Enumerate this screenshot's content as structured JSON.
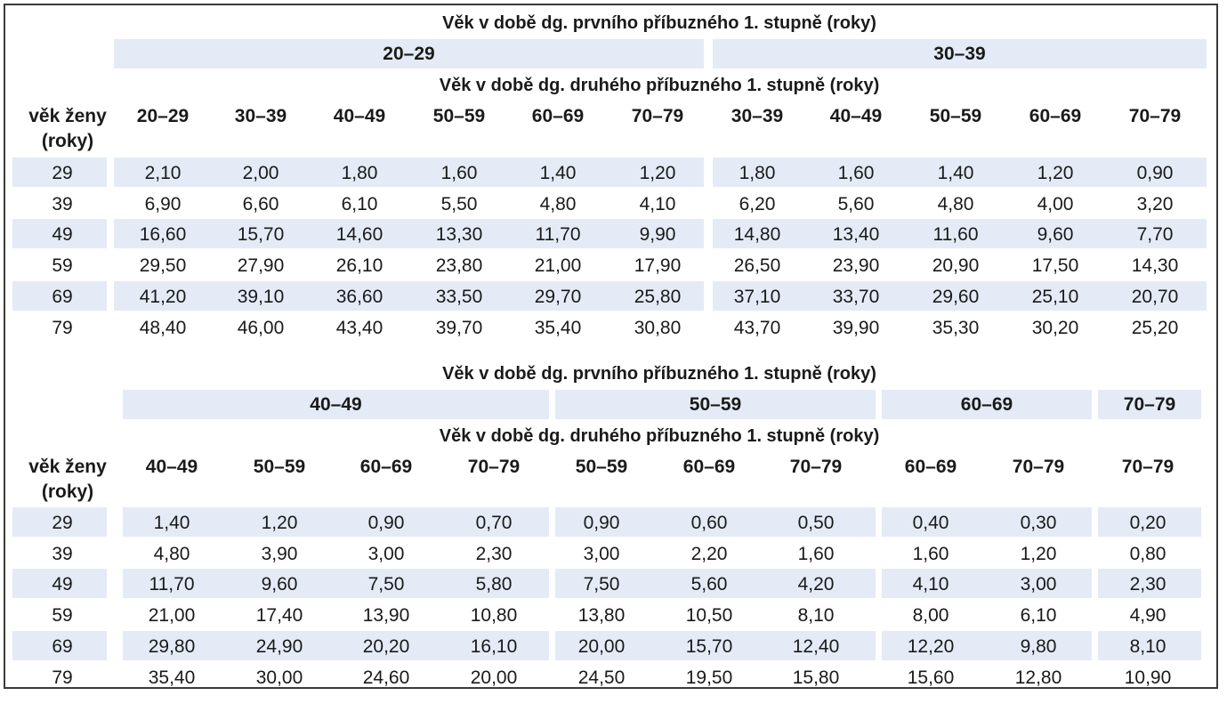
{
  "colors": {
    "band": "#e4ebf6",
    "border": "#3a3a3a",
    "text": "#1a1a1a"
  },
  "tables": [
    {
      "title_first": "Věk v době dg. prvního příbuzného 1. stupně (roky)",
      "title_second": "Věk v době dg. druhého příbuzného 1. stupně (roky)",
      "age_label_line1": "věk ženy",
      "age_label_line2": "(roky)",
      "groups": [
        {
          "label": "20–29",
          "span": 6
        },
        {
          "label": "30–39",
          "span": 5
        }
      ],
      "columns": [
        "20–29",
        "30–39",
        "40–49",
        "50–59",
        "60–69",
        "70–79",
        "30–39",
        "40–49",
        "50–59",
        "60–69",
        "70–79"
      ],
      "rows": [
        {
          "age": "29",
          "values": [
            "2,10",
            "2,00",
            "1,80",
            "1,60",
            "1,40",
            "1,20",
            "1,80",
            "1,60",
            "1,40",
            "1,20",
            "0,90"
          ]
        },
        {
          "age": "39",
          "values": [
            "6,90",
            "6,60",
            "6,10",
            "5,50",
            "4,80",
            "4,10",
            "6,20",
            "5,60",
            "4,80",
            "4,00",
            "3,20"
          ]
        },
        {
          "age": "49",
          "values": [
            "16,60",
            "15,70",
            "14,60",
            "13,30",
            "11,70",
            "9,90",
            "14,80",
            "13,40",
            "11,60",
            "9,60",
            "7,70"
          ]
        },
        {
          "age": "59",
          "values": [
            "29,50",
            "27,90",
            "26,10",
            "23,80",
            "21,00",
            "17,90",
            "26,50",
            "23,90",
            "20,90",
            "17,50",
            "14,30"
          ]
        },
        {
          "age": "69",
          "values": [
            "41,20",
            "39,10",
            "36,60",
            "33,50",
            "29,70",
            "25,80",
            "37,10",
            "33,70",
            "29,60",
            "25,10",
            "20,70"
          ]
        },
        {
          "age": "79",
          "values": [
            "48,40",
            "46,00",
            "43,40",
            "39,70",
            "35,40",
            "30,80",
            "43,70",
            "39,90",
            "35,30",
            "30,20",
            "25,20"
          ]
        }
      ]
    },
    {
      "title_first": "Věk v době dg. prvního příbuzného 1. stupně (roky)",
      "title_second": "Věk v době dg. druhého příbuzného 1. stupně (roky)",
      "age_label_line1": "věk ženy",
      "age_label_line2": "(roky)",
      "groups": [
        {
          "label": "40–49",
          "span": 4
        },
        {
          "label": "50–59",
          "span": 3
        },
        {
          "label": "60–69",
          "span": 2
        },
        {
          "label": "70–79",
          "span": 1
        }
      ],
      "columns": [
        "40–49",
        "50–59",
        "60–69",
        "70–79",
        "50–59",
        "60–69",
        "70–79",
        "60–69",
        "70–79",
        "70–79"
      ],
      "rows": [
        {
          "age": "29",
          "values": [
            "1,40",
            "1,20",
            "0,90",
            "0,70",
            "0,90",
            "0,60",
            "0,50",
            "0,40",
            "0,30",
            "0,20"
          ]
        },
        {
          "age": "39",
          "values": [
            "4,80",
            "3,90",
            "3,00",
            "2,30",
            "3,00",
            "2,20",
            "1,60",
            "1,60",
            "1,20",
            "0,80"
          ]
        },
        {
          "age": "49",
          "values": [
            "11,70",
            "9,60",
            "7,50",
            "5,80",
            "7,50",
            "5,60",
            "4,20",
            "4,10",
            "3,00",
            "2,30"
          ]
        },
        {
          "age": "59",
          "values": [
            "21,00",
            "17,40",
            "13,90",
            "10,80",
            "13,80",
            "10,50",
            "8,10",
            "8,00",
            "6,10",
            "4,90"
          ]
        },
        {
          "age": "69",
          "values": [
            "29,80",
            "24,90",
            "20,20",
            "16,10",
            "20,00",
            "15,70",
            "12,40",
            "12,20",
            "9,80",
            "8,10"
          ]
        },
        {
          "age": "79",
          "values": [
            "35,40",
            "30,00",
            "24,60",
            "20,00",
            "24,50",
            "19,50",
            "15,80",
            "15,60",
            "12,80",
            "10,90"
          ]
        }
      ]
    }
  ]
}
